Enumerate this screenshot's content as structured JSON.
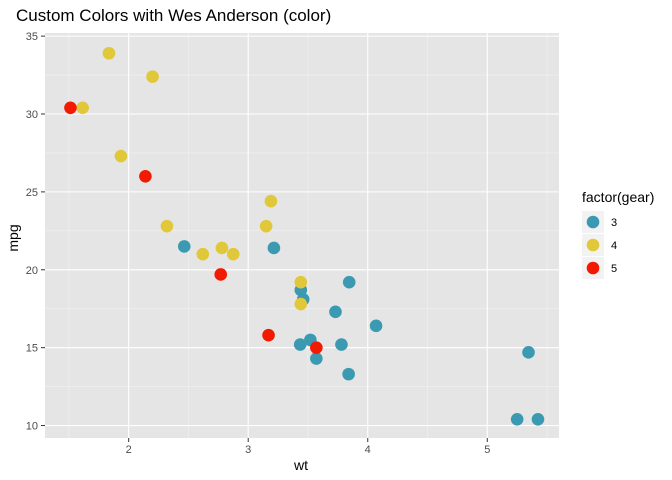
{
  "chart_data": {
    "type": "scatter",
    "title": "Custom Colors with Wes Anderson (color)",
    "xlabel": "wt",
    "ylabel": "mpg",
    "xlim": [
      1.3,
      5.6
    ],
    "ylim": [
      9.2,
      35.2
    ],
    "xticks": [
      2,
      3,
      4,
      5
    ],
    "yticks": [
      10,
      15,
      20,
      25,
      30,
      35
    ],
    "grid": true,
    "legend": {
      "title": "factor(gear)",
      "placement": "right"
    },
    "series": [
      {
        "name": "3",
        "color": "#3B9AB2",
        "points": [
          {
            "x": 3.215,
            "y": 21.4
          },
          {
            "x": 3.44,
            "y": 18.7
          },
          {
            "x": 3.46,
            "y": 18.1
          },
          {
            "x": 3.57,
            "y": 14.3
          },
          {
            "x": 4.07,
            "y": 16.4
          },
          {
            "x": 3.73,
            "y": 17.3
          },
          {
            "x": 3.78,
            "y": 15.2
          },
          {
            "x": 5.25,
            "y": 10.4
          },
          {
            "x": 5.424,
            "y": 10.4
          },
          {
            "x": 5.345,
            "y": 14.7
          },
          {
            "x": 2.465,
            "y": 21.5
          },
          {
            "x": 3.52,
            "y": 15.5
          },
          {
            "x": 3.435,
            "y": 15.2
          },
          {
            "x": 3.84,
            "y": 13.3
          },
          {
            "x": 3.845,
            "y": 19.2
          }
        ]
      },
      {
        "name": "4",
        "color": "#E1C83A",
        "points": [
          {
            "x": 2.62,
            "y": 21.0
          },
          {
            "x": 2.875,
            "y": 21.0
          },
          {
            "x": 2.32,
            "y": 22.8
          },
          {
            "x": 3.19,
            "y": 24.4
          },
          {
            "x": 3.15,
            "y": 22.8
          },
          {
            "x": 3.44,
            "y": 19.2
          },
          {
            "x": 3.44,
            "y": 17.8
          },
          {
            "x": 2.2,
            "y": 32.4
          },
          {
            "x": 1.615,
            "y": 30.4
          },
          {
            "x": 1.835,
            "y": 33.9
          },
          {
            "x": 1.935,
            "y": 27.3
          },
          {
            "x": 2.78,
            "y": 21.4
          }
        ]
      },
      {
        "name": "5",
        "color": "#F21A00",
        "points": [
          {
            "x": 2.14,
            "y": 26.0
          },
          {
            "x": 1.513,
            "y": 30.4
          },
          {
            "x": 3.17,
            "y": 15.8
          },
          {
            "x": 2.77,
            "y": 19.7
          },
          {
            "x": 3.57,
            "y": 15.0
          }
        ]
      }
    ]
  },
  "colors": {
    "panel_background": "#E5E5E5",
    "grid_major": "#FFFFFF",
    "grid_minor": "#F2F2F2",
    "tick_text": "#4D4D4D"
  }
}
